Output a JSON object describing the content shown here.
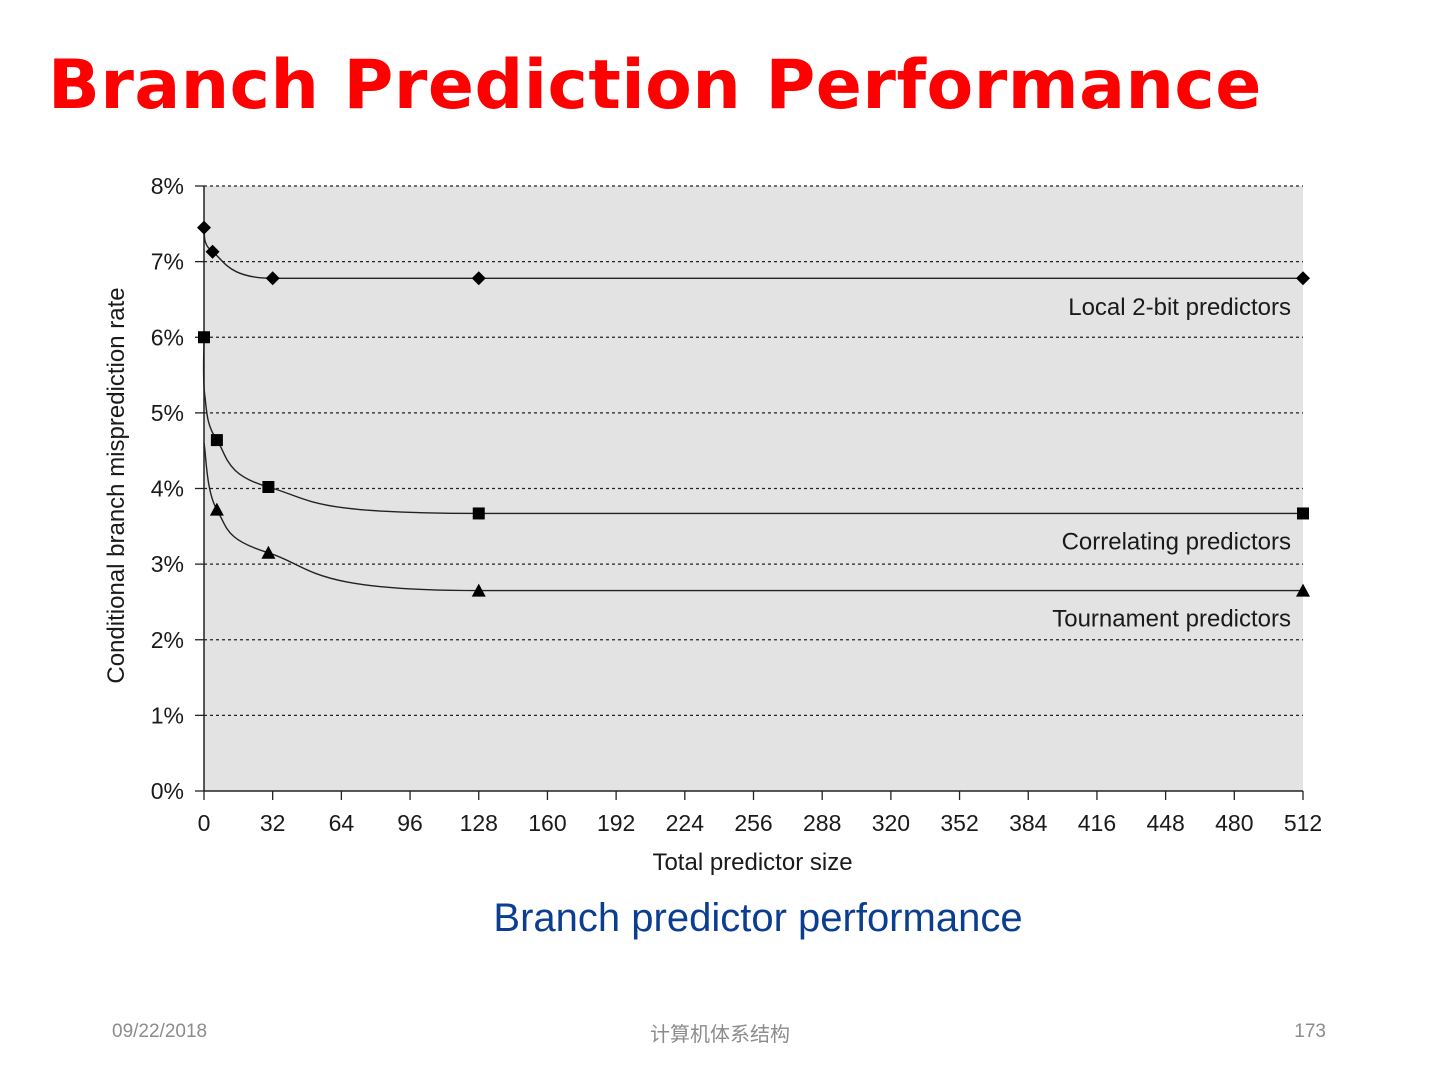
{
  "slide": {
    "title": "Branch Prediction Performance",
    "caption": "Branch predictor performance",
    "footer_date": "09/22/2018",
    "footer_course": "计算机体系结构",
    "page_number": "173",
    "title_color": "#ff0000",
    "caption_color": "#0b3d91"
  },
  "chart_data": {
    "type": "line",
    "xlabel": "Total predictor size",
    "ylabel": "Conditional branch misprediction rate",
    "xlim": [
      0,
      512
    ],
    "ylim": [
      0,
      8
    ],
    "x_ticks": [
      0,
      32,
      64,
      96,
      128,
      160,
      192,
      224,
      256,
      288,
      320,
      352,
      384,
      416,
      448,
      480,
      512
    ],
    "y_ticks": [
      "0%",
      "1%",
      "2%",
      "3%",
      "4%",
      "5%",
      "6%",
      "7%",
      "8%"
    ],
    "grid": "horizontal dotted",
    "background": "#e3e3e3",
    "series": [
      {
        "name": "Local 2-bit predictors",
        "marker": "diamond",
        "x": [
          0,
          4,
          32,
          128,
          512
        ],
        "y": [
          7.45,
          7.13,
          6.78,
          6.78,
          6.78
        ]
      },
      {
        "name": "Correlating predictors",
        "marker": "square",
        "x": [
          0,
          6,
          30,
          128,
          512
        ],
        "y": [
          6.0,
          4.64,
          4.02,
          3.67,
          3.67
        ]
      },
      {
        "name": "Tournament predictors",
        "marker": "triangle",
        "x": [
          6,
          30,
          128,
          512
        ],
        "y": [
          3.72,
          3.15,
          2.65,
          2.65
        ]
      }
    ]
  }
}
